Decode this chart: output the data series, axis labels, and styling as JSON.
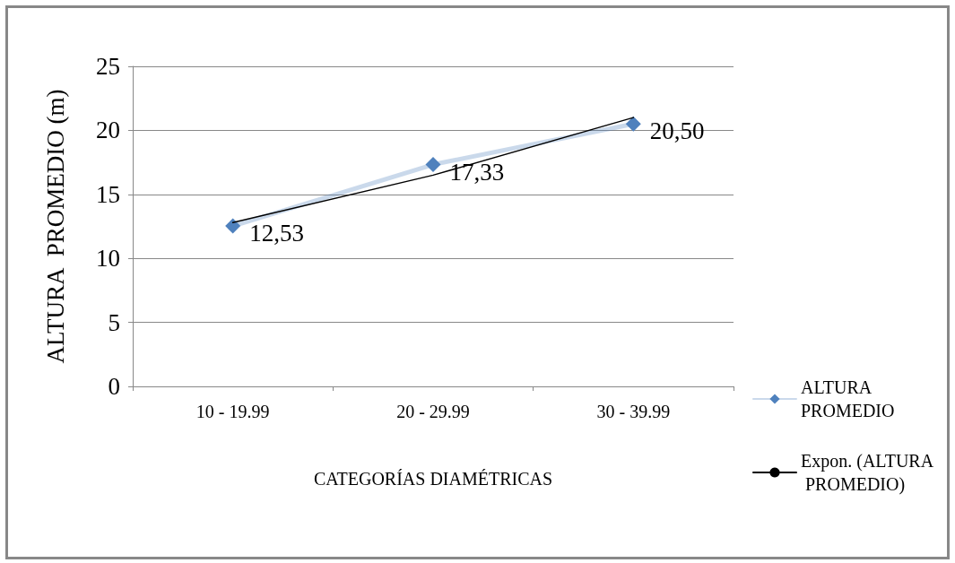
{
  "chart_data": {
    "type": "line",
    "xlabel": "CATEGORÍAS DIAMÉTRICAS",
    "ylabel": "ALTURA  PROMEDIO (m)",
    "categories": [
      "10 - 19.99",
      "20 - 29.99",
      "30 - 39.99"
    ],
    "series": [
      {
        "name": "ALTURA PROMEDIO",
        "color": "#4f81bd",
        "values": [
          12.53,
          17.33,
          20.5
        ],
        "value_labels": [
          "12,53",
          "17,33",
          "20,50"
        ],
        "marker": "diamond"
      },
      {
        "name": "Expon. (ALTURA PROMEDIO)",
        "type": "line",
        "color": "#000000",
        "values": [
          12.8,
          16.5,
          21.0
        ],
        "marker": "none"
      }
    ],
    "ylim": [
      0,
      25
    ],
    "yticks": [
      0,
      5,
      10,
      15,
      20,
      25
    ],
    "grid": "y",
    "legend": "right",
    "line_style": "solid"
  }
}
